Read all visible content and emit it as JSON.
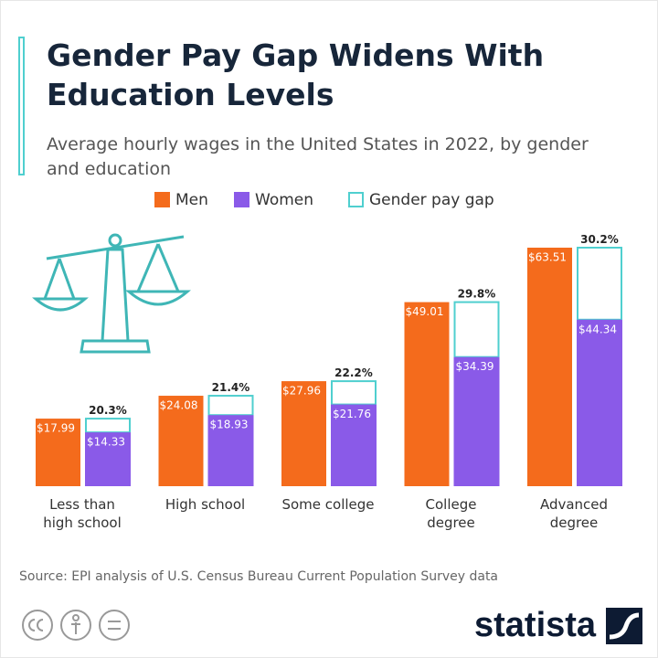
{
  "chart_data": {
    "type": "bar",
    "title": "Gender Pay Gap Widens With Education Levels",
    "subtitle": "Average hourly wages in the United States in 2022, by gender and education",
    "categories": [
      "Less than\nhigh school",
      "High school",
      "Some college",
      "College\ndegree",
      "Advanced\ndegree"
    ],
    "series": [
      {
        "name": "Men",
        "color": "#f46b1c",
        "values": [
          17.99,
          24.08,
          27.96,
          49.01,
          63.51
        ],
        "value_labels": [
          "$17.99",
          "$24.08",
          "$27.96",
          "$49.01",
          "$63.51"
        ]
      },
      {
        "name": "Women",
        "color": "#8a5ae8",
        "values": [
          14.33,
          18.93,
          21.76,
          34.39,
          44.34
        ],
        "value_labels": [
          "$14.33",
          "$18.93",
          "$21.76",
          "$34.39",
          "$44.34"
        ]
      },
      {
        "name": "Gender pay gap",
        "color": "#4fcfcf",
        "outline": true,
        "values": [
          20.3,
          21.4,
          22.2,
          29.8,
          30.2
        ],
        "value_labels": [
          "20.3%",
          "21.4%",
          "22.2%",
          "29.8%",
          "30.2%"
        ]
      }
    ],
    "source": "Source: EPI analysis of U.S. Census Bureau Current Population Survey data",
    "brand": "statista"
  }
}
